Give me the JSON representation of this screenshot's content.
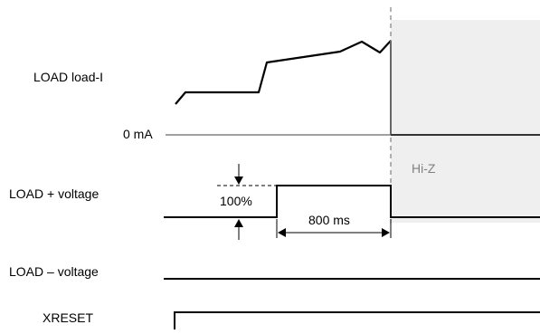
{
  "labels": {
    "load_current": "LOAD load-I",
    "zero_ma": "0 mA",
    "load_plus_voltage": "LOAD + voltage",
    "load_minus_voltage": "LOAD – voltage",
    "xreset": "XRESET"
  },
  "annotations": {
    "step_percent": "100%",
    "pulse_duration": "800 ms",
    "high_impedance": "Hi-Z"
  },
  "colors": {
    "trace": "#000000",
    "baseline": "#808080",
    "hi_z_fill": "#efefef",
    "hi_z_text": "#808080",
    "marker_line": "#808080"
  }
}
